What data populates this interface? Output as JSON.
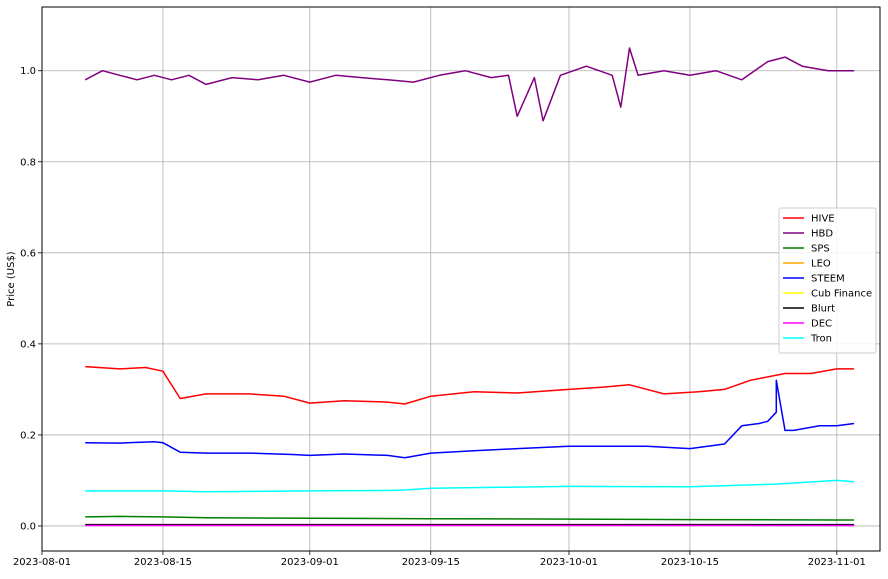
{
  "chart_data": {
    "type": "line",
    "title": "",
    "xlabel": "",
    "ylabel": "Price (US$)",
    "xlim": [
      "2023-08-01",
      "2023-11-06"
    ],
    "ylim": [
      -0.055,
      1.14
    ],
    "grid": true,
    "legend_position": "right",
    "x_ticks": [
      "2023-08-01",
      "2023-08-15",
      "2023-09-01",
      "2023-09-15",
      "2023-10-01",
      "2023-10-15",
      "2023-11-01"
    ],
    "y_ticks": [
      0.0,
      0.2,
      0.4,
      0.6,
      0.8,
      1.0
    ],
    "series": [
      {
        "name": "HIVE",
        "color": "#ff0000",
        "x": [
          "2023-08-06",
          "2023-08-10",
          "2023-08-13",
          "2023-08-15",
          "2023-08-17",
          "2023-08-20",
          "2023-08-25",
          "2023-08-29",
          "2023-09-01",
          "2023-09-05",
          "2023-09-10",
          "2023-09-12",
          "2023-09-15",
          "2023-09-20",
          "2023-09-25",
          "2023-10-01",
          "2023-10-05",
          "2023-10-08",
          "2023-10-12",
          "2023-10-16",
          "2023-10-19",
          "2023-10-22",
          "2023-10-26",
          "2023-10-29",
          "2023-11-01",
          "2023-11-03"
        ],
        "y": [
          0.35,
          0.345,
          0.348,
          0.34,
          0.28,
          0.29,
          0.29,
          0.285,
          0.27,
          0.275,
          0.272,
          0.268,
          0.285,
          0.295,
          0.292,
          0.3,
          0.305,
          0.31,
          0.29,
          0.295,
          0.3,
          0.32,
          0.335,
          0.335,
          0.345,
          0.345
        ]
      },
      {
        "name": "HBD",
        "color": "#800080",
        "x": [
          "2023-08-06",
          "2023-08-08",
          "2023-08-10",
          "2023-08-12",
          "2023-08-14",
          "2023-08-16",
          "2023-08-18",
          "2023-08-20",
          "2023-08-23",
          "2023-08-26",
          "2023-08-29",
          "2023-09-01",
          "2023-09-04",
          "2023-09-07",
          "2023-09-10",
          "2023-09-13",
          "2023-09-16",
          "2023-09-19",
          "2023-09-22",
          "2023-09-24",
          "2023-09-25",
          "2023-09-27",
          "2023-09-28",
          "2023-09-30",
          "2023-10-03",
          "2023-10-06",
          "2023-10-07",
          "2023-10-08",
          "2023-10-09",
          "2023-10-12",
          "2023-10-15",
          "2023-10-18",
          "2023-10-21",
          "2023-10-24",
          "2023-10-26",
          "2023-10-28",
          "2023-10-31",
          "2023-11-03"
        ],
        "y": [
          0.98,
          1.0,
          0.99,
          0.98,
          0.99,
          0.98,
          0.99,
          0.97,
          0.985,
          0.98,
          0.99,
          0.975,
          0.99,
          0.985,
          0.98,
          0.975,
          0.99,
          1.0,
          0.985,
          0.99,
          0.9,
          0.985,
          0.89,
          0.99,
          1.01,
          0.99,
          0.92,
          1.05,
          0.99,
          1.0,
          0.99,
          1.0,
          0.98,
          1.02,
          1.03,
          1.01,
          1.0,
          1.0
        ]
      },
      {
        "name": "SPS",
        "color": "#008000",
        "x": [
          "2023-08-06",
          "2023-08-10",
          "2023-08-15",
          "2023-08-20",
          "2023-09-01",
          "2023-09-15",
          "2023-10-01",
          "2023-10-15",
          "2023-11-01",
          "2023-11-03"
        ],
        "y": [
          0.02,
          0.021,
          0.02,
          0.018,
          0.017,
          0.016,
          0.015,
          0.014,
          0.013,
          0.013
        ]
      },
      {
        "name": "LEO",
        "color": "#ffa500",
        "x": [
          "2023-08-06",
          "2023-11-03"
        ],
        "y": [
          0.002,
          0.002
        ]
      },
      {
        "name": "STEEM",
        "color": "#0000ff",
        "x": [
          "2023-08-06",
          "2023-08-10",
          "2023-08-14",
          "2023-08-15",
          "2023-08-17",
          "2023-08-20",
          "2023-08-25",
          "2023-08-30",
          "2023-09-01",
          "2023-09-05",
          "2023-09-10",
          "2023-09-12",
          "2023-09-15",
          "2023-09-20",
          "2023-09-25",
          "2023-10-01",
          "2023-10-05",
          "2023-10-10",
          "2023-10-15",
          "2023-10-19",
          "2023-10-21",
          "2023-10-23",
          "2023-10-24",
          "2023-10-25",
          "2023-10-25",
          "2023-10-26",
          "2023-10-27",
          "2023-10-30",
          "2023-11-01",
          "2023-11-03"
        ],
        "y": [
          0.183,
          0.182,
          0.185,
          0.183,
          0.162,
          0.16,
          0.16,
          0.157,
          0.155,
          0.158,
          0.155,
          0.15,
          0.16,
          0.165,
          0.17,
          0.175,
          0.175,
          0.175,
          0.17,
          0.18,
          0.22,
          0.225,
          0.23,
          0.25,
          0.32,
          0.21,
          0.21,
          0.22,
          0.22,
          0.225
        ]
      },
      {
        "name": "Cub Finance",
        "color": "#ffff00",
        "x": [
          "2023-08-06",
          "2023-11-03"
        ],
        "y": [
          0.0015,
          0.0015
        ]
      },
      {
        "name": "Blurt",
        "color": "#000000",
        "x": [
          "2023-08-06",
          "2023-11-03"
        ],
        "y": [
          0.003,
          0.003
        ]
      },
      {
        "name": "DEC",
        "color": "#ff00ff",
        "x": [
          "2023-08-06",
          "2023-11-03"
        ],
        "y": [
          0.001,
          0.001
        ]
      },
      {
        "name": "Tron",
        "color": "#00ffff",
        "x": [
          "2023-08-06",
          "2023-08-15",
          "2023-08-20",
          "2023-09-01",
          "2023-09-10",
          "2023-09-12",
          "2023-09-15",
          "2023-10-01",
          "2023-10-15",
          "2023-10-25",
          "2023-11-01",
          "2023-11-03"
        ],
        "y": [
          0.077,
          0.077,
          0.075,
          0.077,
          0.078,
          0.079,
          0.083,
          0.087,
          0.086,
          0.092,
          0.1,
          0.097
        ]
      }
    ]
  }
}
